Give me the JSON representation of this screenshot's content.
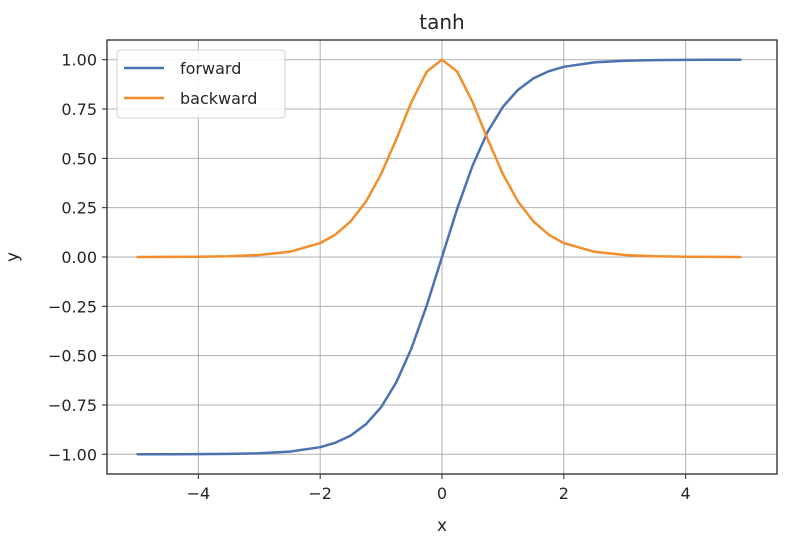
{
  "chart_data": {
    "type": "line",
    "title": "tanh",
    "xlabel": "x",
    "ylabel": "y",
    "xlim": [
      -5.5,
      5.5
    ],
    "ylim": [
      -1.1,
      1.1
    ],
    "xticks": [
      -4,
      -2,
      0,
      2,
      4
    ],
    "xtick_labels": [
      "−4",
      "−2",
      "0",
      "2",
      "4"
    ],
    "yticks": [
      -1.0,
      -0.75,
      -0.5,
      -0.25,
      0.0,
      0.25,
      0.5,
      0.75,
      1.0
    ],
    "ytick_labels": [
      "−1.00",
      "−0.75",
      "−0.50",
      "−0.25",
      "0.00",
      "0.25",
      "0.50",
      "0.75",
      "1.00"
    ],
    "grid": true,
    "legend_position": "top-left",
    "x": [
      -5,
      -4.5,
      -4,
      -3.5,
      -3,
      -2.5,
      -2,
      -1.75,
      -1.5,
      -1.25,
      -1,
      -0.75,
      -0.5,
      -0.25,
      0,
      0.25,
      0.5,
      0.75,
      1,
      1.25,
      1.5,
      1.75,
      2,
      2.5,
      3,
      3.5,
      4,
      4.5,
      4.9
    ],
    "series": [
      {
        "name": "forward",
        "color": "#4c72b0",
        "values": [
          -0.9999,
          -0.9998,
          -0.9993,
          -0.9982,
          -0.9951,
          -0.9866,
          -0.964,
          -0.9414,
          -0.9051,
          -0.8483,
          -0.7616,
          -0.6351,
          -0.4621,
          -0.2449,
          0,
          0.2449,
          0.4621,
          0.6351,
          0.7616,
          0.8483,
          0.9051,
          0.9414,
          0.964,
          0.9866,
          0.9951,
          0.9982,
          0.9993,
          0.9998,
          0.9999
        ]
      },
      {
        "name": "backward",
        "color": "#f28e2b",
        "values": [
          0.0002,
          0.0005,
          0.0013,
          0.0036,
          0.0099,
          0.0266,
          0.0707,
          0.1138,
          0.1807,
          0.2805,
          0.42,
          0.5966,
          0.7864,
          0.94,
          1.0,
          0.94,
          0.7864,
          0.5966,
          0.42,
          0.2805,
          0.1807,
          0.1138,
          0.0707,
          0.0266,
          0.0099,
          0.0036,
          0.0013,
          0.0005,
          0.0002
        ]
      }
    ]
  }
}
